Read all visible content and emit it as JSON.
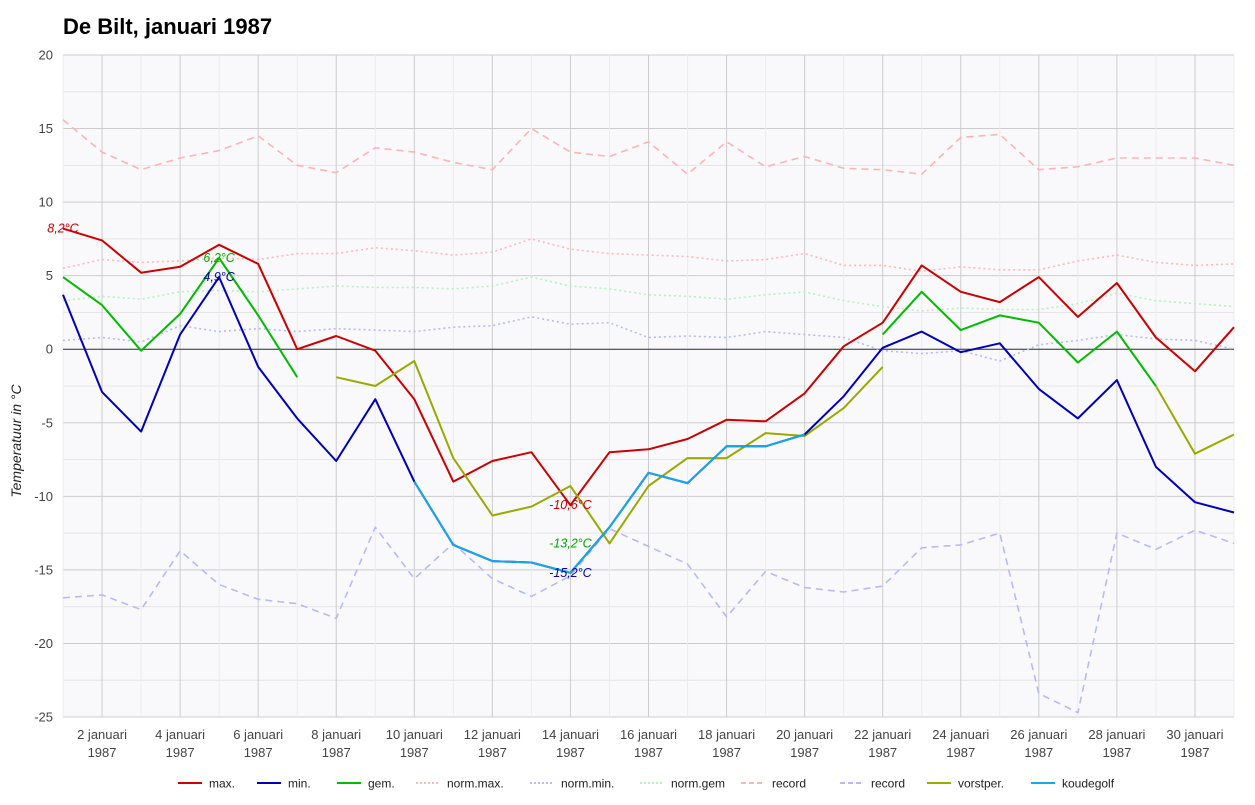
{
  "chart_data": {
    "type": "line",
    "title": "De Bilt, januari 1987",
    "ylabel": "Temperatuur in °C",
    "xlabel": "",
    "ylim": [
      -25,
      20
    ],
    "yticks": [
      20,
      15,
      10,
      5,
      0,
      -5,
      -10,
      -15,
      -20,
      -25
    ],
    "xlim": [
      1,
      31
    ],
    "x": [
      1,
      2,
      3,
      4,
      5,
      6,
      7,
      8,
      9,
      10,
      11,
      12,
      13,
      14,
      15,
      16,
      17,
      18,
      19,
      20,
      21,
      22,
      23,
      24,
      25,
      26,
      27,
      28,
      29,
      30,
      31
    ],
    "xtick_labels": [
      {
        "day": 2,
        "line1": "2 januari",
        "line2": "1987"
      },
      {
        "day": 4,
        "line1": "4 januari",
        "line2": "1987"
      },
      {
        "day": 6,
        "line1": "6 januari",
        "line2": "1987"
      },
      {
        "day": 8,
        "line1": "8 januari",
        "line2": "1987"
      },
      {
        "day": 10,
        "line1": "10 januari",
        "line2": "1987"
      },
      {
        "day": 12,
        "line1": "12 januari",
        "line2": "1987"
      },
      {
        "day": 14,
        "line1": "14 januari",
        "line2": "1987"
      },
      {
        "day": 16,
        "line1": "16 januari",
        "line2": "1987"
      },
      {
        "day": 18,
        "line1": "18 januari",
        "line2": "1987"
      },
      {
        "day": 20,
        "line1": "20 januari",
        "line2": "1987"
      },
      {
        "day": 22,
        "line1": "22 januari",
        "line2": "1987"
      },
      {
        "day": 24,
        "line1": "24 januari",
        "line2": "1987"
      },
      {
        "day": 26,
        "line1": "26 januari",
        "line2": "1987"
      },
      {
        "day": 28,
        "line1": "28 januari",
        "line2": "1987"
      },
      {
        "day": 30,
        "line1": "30 januari",
        "line2": "1987"
      }
    ],
    "grid": true,
    "legend_position": "bottom",
    "series": [
      {
        "key": "record_max",
        "name": "record",
        "color": "#ffb3b3",
        "dash": "dashed",
        "values": [
          15.6,
          13.4,
          12.2,
          13.0,
          13.5,
          14.5,
          12.5,
          12.0,
          13.7,
          13.4,
          12.7,
          12.2,
          15.0,
          13.4,
          13.1,
          14.1,
          11.9,
          14.1,
          12.4,
          13.1,
          12.3,
          12.2,
          11.9,
          14.4,
          14.6,
          12.2,
          12.4,
          13.0,
          13.0,
          13.0,
          12.5
        ]
      },
      {
        "key": "record_min",
        "name": "record",
        "color": "#b8b8ff",
        "dash": "dashed",
        "values": [
          -16.9,
          -16.7,
          -17.7,
          -13.7,
          -16.0,
          -17.0,
          -17.3,
          -18.3,
          -12.1,
          -15.6,
          -13.2,
          -15.6,
          -16.8,
          -15.4,
          -12.2,
          -13.4,
          -14.6,
          -18.2,
          -15.1,
          -16.2,
          -16.5,
          -16.1,
          -13.5,
          -13.3,
          -12.5,
          -23.4,
          -24.7,
          -12.5,
          -13.6,
          -12.3,
          -13.2
        ]
      },
      {
        "key": "norm_max",
        "name": "norm.max.",
        "color": "#ffb8b8",
        "dash": "dotted",
        "values": [
          5.5,
          6.1,
          5.9,
          6.0,
          6.2,
          6.1,
          6.5,
          6.5,
          6.9,
          6.7,
          6.4,
          6.6,
          7.5,
          6.8,
          6.5,
          6.4,
          6.3,
          6.0,
          6.1,
          6.5,
          5.7,
          5.7,
          5.3,
          5.6,
          5.4,
          5.4,
          6.0,
          6.4,
          5.9,
          5.7,
          5.8
        ]
      },
      {
        "key": "norm_gem",
        "name": "norm.gem",
        "color": "#b8f0c0",
        "dash": "dotted",
        "values": [
          3.3,
          3.6,
          3.4,
          3.9,
          4.0,
          3.9,
          4.1,
          4.3,
          4.2,
          4.2,
          4.1,
          4.3,
          4.9,
          4.3,
          4.1,
          3.7,
          3.6,
          3.4,
          3.7,
          3.9,
          3.3,
          2.9,
          2.6,
          2.8,
          2.7,
          2.7,
          3.1,
          3.8,
          3.3,
          3.1,
          2.9
        ]
      },
      {
        "key": "norm_min",
        "name": "norm.min.",
        "color": "#b8b8ff",
        "dash": "dotted",
        "values": [
          0.6,
          0.8,
          0.5,
          1.6,
          1.2,
          1.4,
          1.2,
          1.4,
          1.3,
          1.2,
          1.5,
          1.6,
          2.2,
          1.7,
          1.8,
          0.8,
          0.9,
          0.8,
          1.2,
          1.0,
          0.8,
          -0.1,
          -0.3,
          -0.1,
          -0.8,
          0.3,
          0.6,
          1.0,
          0.7,
          0.6,
          0.0
        ]
      },
      {
        "key": "max",
        "name": "max.",
        "color": "#cc0000",
        "dash": "solid",
        "values": [
          8.2,
          7.4,
          5.2,
          5.6,
          7.1,
          5.8,
          0.0,
          0.9,
          -0.1,
          -3.4,
          -9.0,
          -7.6,
          -7.0,
          -10.6,
          -7.0,
          -6.8,
          -6.1,
          -4.8,
          -4.9,
          -3.0,
          0.2,
          1.8,
          5.7,
          3.9,
          3.2,
          4.9,
          2.2,
          4.5,
          0.8,
          -1.5,
          1.5
        ]
      },
      {
        "key": "vorstper",
        "name": "vorstper.",
        "color": "#99aa00",
        "dash": "solid",
        "values": [
          null,
          null,
          null,
          null,
          null,
          null,
          null,
          -1.9,
          -2.5,
          -0.8,
          -7.4,
          -11.3,
          -10.7,
          -9.3,
          -13.2,
          -9.3,
          -7.4,
          -7.4,
          -5.7,
          -5.9,
          -4.0,
          -1.2,
          null,
          null,
          null,
          null,
          null,
          null,
          -2.5,
          -7.1,
          -5.8
        ]
      },
      {
        "key": "gem",
        "name": "gem.",
        "color": "#00bb00",
        "dash": "solid",
        "values": [
          4.9,
          3.0,
          -0.1,
          2.4,
          6.2,
          2.3,
          -1.9,
          null,
          null,
          null,
          null,
          null,
          null,
          null,
          null,
          null,
          null,
          null,
          null,
          null,
          null,
          1.0,
          3.9,
          1.3,
          2.3,
          1.8,
          -0.9,
          1.2,
          -2.5,
          null,
          null
        ]
      },
      {
        "key": "min",
        "name": "min.",
        "color": "#0000bb",
        "dash": "solid",
        "values": [
          3.7,
          -2.9,
          -5.6,
          1.0,
          4.9,
          -1.2,
          -4.7,
          -7.6,
          -3.4,
          -9.0,
          -13.3,
          -14.4,
          -14.5,
          -15.2,
          -12.1,
          -8.4,
          -9.1,
          -6.6,
          -6.6,
          -5.8,
          -3.2,
          0.1,
          1.2,
          -0.2,
          0.4,
          -2.7,
          -4.7,
          -2.1,
          -8.0,
          -10.4,
          -11.1
        ]
      },
      {
        "key": "koudegolf",
        "name": "koudegolf",
        "color": "#16a7e8",
        "dash": "solid",
        "values": [
          null,
          null,
          null,
          null,
          null,
          null,
          null,
          null,
          null,
          -9.0,
          -13.3,
          -14.4,
          -14.5,
          -15.2,
          -12.1,
          -8.4,
          -9.1,
          -6.6,
          -6.6,
          -5.8,
          null,
          null,
          null,
          null,
          null,
          null,
          null,
          null,
          null,
          null,
          null
        ]
      }
    ],
    "legend": [
      {
        "name": "max.",
        "color": "#cc0000",
        "dash": "solid"
      },
      {
        "name": "min.",
        "color": "#0000bb",
        "dash": "solid"
      },
      {
        "name": "gem.",
        "color": "#00bb00",
        "dash": "solid"
      },
      {
        "name": "norm.max.",
        "color": "#ffb8b8",
        "dash": "dotted"
      },
      {
        "name": "norm.min.",
        "color": "#b8b8ff",
        "dash": "dotted"
      },
      {
        "name": "norm.gem",
        "color": "#b8f0c0",
        "dash": "dotted"
      },
      {
        "name": "record",
        "color": "#ffb3b3",
        "dash": "dashed"
      },
      {
        "name": "record",
        "color": "#b8b8ff",
        "dash": "dashed"
      },
      {
        "name": "vorstper.",
        "color": "#99aa00",
        "dash": "solid"
      },
      {
        "name": "koudegolf",
        "color": "#16a7e8",
        "dash": "solid"
      }
    ],
    "annotations": [
      {
        "text": "8,2°C",
        "x": 1,
        "y": 8.2,
        "color": "#cc0000"
      },
      {
        "text": "6,2°C",
        "x": 5,
        "y": 6.2,
        "color": "#00aa00"
      },
      {
        "text": "4,9°C",
        "x": 5,
        "y": 4.9,
        "color": "#0000bb"
      },
      {
        "text": "-10,6°C",
        "x": 14,
        "y": -10.6,
        "color": "#cc0000"
      },
      {
        "text": "-13,2°C",
        "x": 14,
        "y": -13.2,
        "color": "#00aa00"
      },
      {
        "text": "-15,2°C",
        "x": 14,
        "y": -15.2,
        "color": "#0000bb"
      }
    ]
  }
}
